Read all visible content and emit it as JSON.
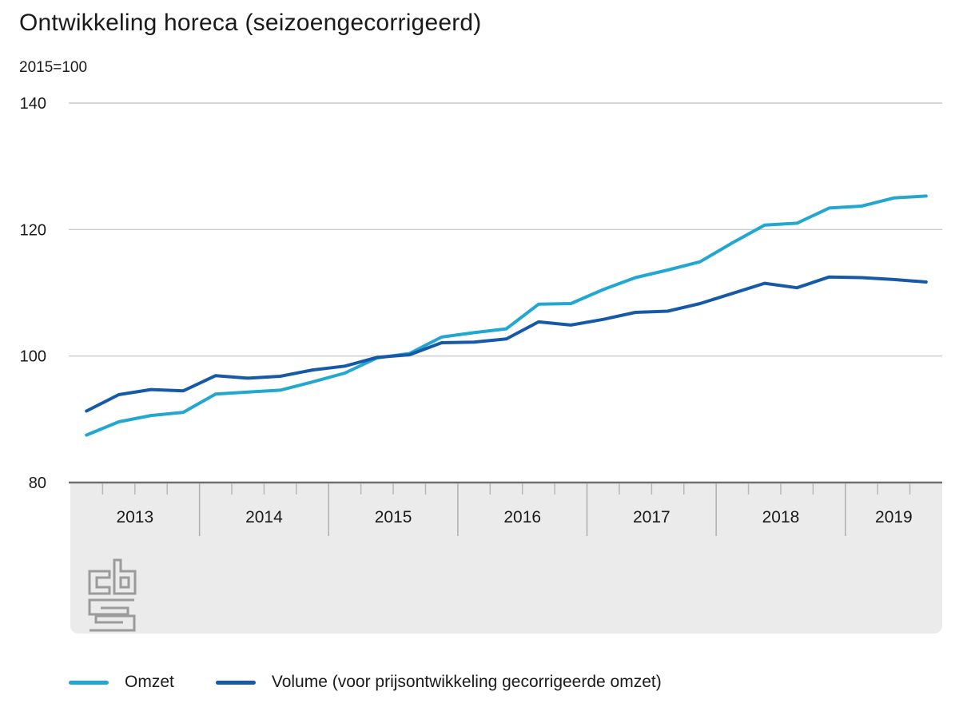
{
  "header": {
    "title": "Ontwikkeling horeca (seizoengecorrigeerd)",
    "subtitle": "2015=100"
  },
  "legend": {
    "items": [
      {
        "label": "Omzet",
        "color": "#22a7d0"
      },
      {
        "label": "Volume (voor prijsontwikkeling gecorrigeerde omzet)",
        "color": "#1659a8"
      }
    ]
  },
  "logo": {
    "label": "CBS",
    "color": "#9b9b9b"
  },
  "chart_data": {
    "type": "line",
    "title": "Ontwikkeling horeca (seizoengecorrigeerd)",
    "subtitle": "2015=100",
    "x_unit": "quarter",
    "grid": "horizontal",
    "legend_position": "bottom",
    "ylim": [
      80,
      140
    ],
    "yticks": [
      140,
      120,
      100,
      80
    ],
    "years": [
      {
        "label": "2013",
        "quarters": 4
      },
      {
        "label": "2014",
        "quarters": 4
      },
      {
        "label": "2015",
        "quarters": 4
      },
      {
        "label": "2016",
        "quarters": 4
      },
      {
        "label": "2017",
        "quarters": 4
      },
      {
        "label": "2018",
        "quarters": 4
      },
      {
        "label": "2019",
        "quarters": 3
      }
    ],
    "categories": [
      "2013 Q1",
      "2013 Q2",
      "2013 Q3",
      "2013 Q4",
      "2014 Q1",
      "2014 Q2",
      "2014 Q3",
      "2014 Q4",
      "2015 Q1",
      "2015 Q2",
      "2015 Q3",
      "2015 Q4",
      "2016 Q1",
      "2016 Q2",
      "2016 Q3",
      "2016 Q4",
      "2017 Q1",
      "2017 Q2",
      "2017 Q3",
      "2017 Q4",
      "2018 Q1",
      "2018 Q2",
      "2018 Q3",
      "2018 Q4",
      "2019 Q1",
      "2019 Q2",
      "2019 Q3"
    ],
    "series": [
      {
        "name": "Omzet",
        "color": "#22a7d0",
        "values": [
          87.5,
          89.6,
          90.6,
          91.1,
          94.0,
          94.3,
          94.6,
          95.9,
          97.3,
          99.7,
          100.4,
          103.0,
          103.7,
          104.3,
          108.2,
          108.3,
          110.5,
          112.4,
          113.6,
          114.9,
          117.9,
          120.7,
          121.0,
          123.4,
          123.7,
          125.0,
          125.3
        ]
      },
      {
        "name": "Volume (voor prijsontwikkeling gecorrigeerde omzet)",
        "color": "#1659a8",
        "values": [
          91.3,
          93.9,
          94.7,
          94.5,
          96.9,
          96.5,
          96.8,
          97.8,
          98.4,
          99.8,
          100.2,
          102.1,
          102.2,
          102.7,
          105.4,
          104.9,
          105.8,
          106.9,
          107.1,
          108.3,
          109.9,
          111.5,
          110.8,
          112.5,
          112.4,
          112.1,
          111.7
        ]
      }
    ]
  },
  "colors": {
    "background": "#ffffff",
    "grid": "#cccccc",
    "axis_band": "#ebebeb",
    "axis_line": "#6f6f6f",
    "tick": "#b8b8b8",
    "year_separator": "#afafaf",
    "text": "#1a1a1a",
    "logo": "#9b9b9b"
  }
}
